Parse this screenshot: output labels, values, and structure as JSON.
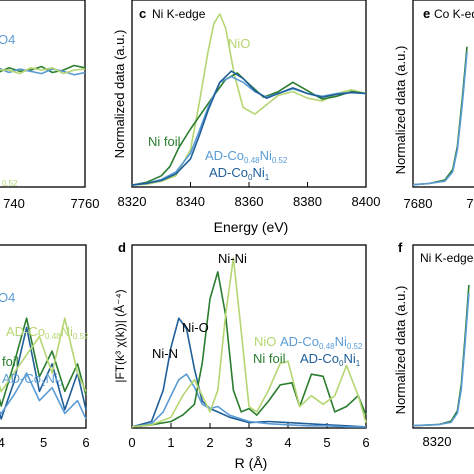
{
  "chart_data": [
    {
      "type": "line",
      "panel": "top-left (cropped)",
      "xlim": [
        7720,
        7760
      ],
      "ylim": [
        0,
        1.6
      ],
      "tick_labels_x": [
        "740",
        "7760"
      ],
      "text_fragments": [
        "O4",
        "0.52"
      ],
      "series": [
        {
          "name": "",
          "color": "#2a7d2e",
          "x": [
            7720,
            7725,
            7730,
            7735,
            7740,
            7745,
            7750,
            7755,
            7760
          ],
          "y": [
            0.98,
            1.02,
            0.99,
            1.0,
            1.03,
            0.98,
            1.0,
            1.04,
            1.02
          ]
        },
        {
          "name": "",
          "color": "#5b9bd5",
          "x": [
            7720,
            7725,
            7730,
            7735,
            7740,
            7745,
            7750,
            7755,
            7760
          ],
          "y": [
            1.02,
            0.98,
            1.01,
            0.99,
            0.97,
            1.01,
            0.99,
            0.96,
            0.98
          ]
        },
        {
          "name": "",
          "color": "#b5d672",
          "x": [
            7720,
            7725,
            7730,
            7735,
            7740,
            7745,
            7750,
            7755,
            7760
          ],
          "y": [
            1.0,
            1.0,
            0.97,
            1.02,
            1.0,
            1.02,
            0.97,
            1.0,
            1.01
          ]
        }
      ]
    },
    {
      "type": "line",
      "panel_label": "c",
      "title": "Ni K-edge",
      "xlabel": "Energy (eV)",
      "ylabel": "Normalized data (a.u.)",
      "xlim": [
        8320,
        8400
      ],
      "ylim": [
        0,
        2.0
      ],
      "x_ticks": [
        8320,
        8340,
        8360,
        8380,
        8400
      ],
      "tick_labels_x": [
        "8320",
        "8340",
        "8360",
        "8380",
        "8400"
      ],
      "annotations": [
        {
          "text": "NiO",
          "color": "#b5d672"
        },
        {
          "text": "Ni foil",
          "color": "#2a7d2e"
        }
      ],
      "legend_lines": [
        {
          "base": "AD-Co",
          "sub1": "0.48",
          "mid": "Ni",
          "sub2": "0.52",
          "color": "#5b9bd5"
        },
        {
          "base": "AD-Co",
          "sub1": "0",
          "mid": "Ni",
          "sub2": "1",
          "color": "#1f5f99"
        }
      ],
      "series": [
        {
          "name": "NiO",
          "color": "#b5d672",
          "x": [
            8320,
            8325,
            8330,
            8335,
            8340,
            8343,
            8346,
            8348,
            8350,
            8352,
            8355,
            8358,
            8362,
            8366,
            8370,
            8375,
            8380,
            8385,
            8390,
            8395,
            8400
          ],
          "y": [
            0.02,
            0.03,
            0.06,
            0.12,
            0.4,
            0.9,
            1.45,
            1.75,
            1.85,
            1.7,
            1.2,
            0.85,
            0.78,
            0.88,
            0.98,
            1.02,
            0.95,
            0.92,
            1.0,
            1.04,
            1.0
          ]
        },
        {
          "name": "Ni foil",
          "color": "#2a7d2e",
          "x": [
            8320,
            8325,
            8330,
            8333,
            8336,
            8340,
            8344,
            8348,
            8352,
            8356,
            8360,
            8365,
            8370,
            8375,
            8380,
            8385,
            8390,
            8395,
            8400
          ],
          "y": [
            0.02,
            0.05,
            0.12,
            0.22,
            0.42,
            0.62,
            0.8,
            0.98,
            1.15,
            1.22,
            1.1,
            0.96,
            1.02,
            1.12,
            1.03,
            0.94,
            0.97,
            1.02,
            1.0
          ]
        },
        {
          "name": "AD-Co0.48Ni0.52",
          "color": "#5b9bd5",
          "x": [
            8320,
            8325,
            8330,
            8335,
            8340,
            8343,
            8346,
            8350,
            8354,
            8358,
            8362,
            8366,
            8370,
            8375,
            8380,
            8385,
            8390,
            8395,
            8400
          ],
          "y": [
            0.02,
            0.04,
            0.08,
            0.16,
            0.36,
            0.6,
            0.85,
            1.12,
            1.18,
            1.12,
            1.02,
            0.96,
            1.0,
            1.05,
            1.0,
            0.97,
            1.0,
            1.01,
            1.0
          ]
        },
        {
          "name": "AD-Co0Ni1",
          "color": "#1f5f99",
          "x": [
            8320,
            8325,
            8330,
            8335,
            8340,
            8343,
            8346,
            8350,
            8354,
            8358,
            8362,
            8366,
            8370,
            8375,
            8380,
            8385,
            8390,
            8395,
            8400
          ],
          "y": [
            0.02,
            0.04,
            0.07,
            0.14,
            0.3,
            0.55,
            0.82,
            1.12,
            1.24,
            1.16,
            1.03,
            0.95,
            1.0,
            1.06,
            1.0,
            0.96,
            0.99,
            1.01,
            1.0
          ]
        }
      ]
    },
    {
      "type": "line",
      "panel_label": "e",
      "title": "Co K-edge",
      "ylabel": "Normalized data (a.u.)",
      "xlim": [
        7680,
        7760
      ],
      "tick_labels_x": [
        "7680",
        "7"
      ],
      "series": [
        {
          "name": "",
          "color": "#2a7d2e",
          "x": [
            7680,
            7690,
            7700,
            7705,
            7708,
            7711,
            7714
          ],
          "y": [
            0.02,
            0.03,
            0.06,
            0.15,
            0.35,
            0.75,
            1.2
          ]
        },
        {
          "name": "",
          "color": "#5b9bd5",
          "x": [
            7680,
            7690,
            7700,
            7705,
            7708,
            7711,
            7714
          ],
          "y": [
            0.02,
            0.03,
            0.05,
            0.13,
            0.32,
            0.7,
            1.15
          ]
        }
      ]
    },
    {
      "type": "line",
      "panel": "bottom-left (cropped)",
      "xlim": [
        3.5,
        6
      ],
      "x_ticks": [
        4,
        5,
        6
      ],
      "tick_labels_x": [
        "4",
        "5",
        "6"
      ],
      "text_fragments": [
        "O4"
      ],
      "legend_lines": [
        {
          "base": "AD-Co",
          "sub1": "0.48",
          "mid": "Ni",
          "sub2": "0.52",
          "color": "#b5d672"
        },
        {
          "base": "foil",
          "color": "#2a7d2e"
        },
        {
          "base": "AD-Co",
          "sub1": "1",
          "mid": "Ni",
          "sub2": "0",
          "color": "#5b9bd5"
        }
      ],
      "series": [
        {
          "name": "",
          "color": "#1f5f99",
          "x": [
            3.5,
            3.8,
            4.0,
            4.3,
            4.6,
            4.9,
            5.2,
            5.5,
            5.8,
            6.0
          ],
          "y": [
            0.05,
            0.2,
            0.05,
            0.25,
            0.55,
            0.2,
            0.35,
            0.1,
            0.3,
            0.1
          ]
        },
        {
          "name": "",
          "color": "#2a7d2e",
          "x": [
            3.5,
            3.8,
            4.0,
            4.3,
            4.6,
            4.9,
            5.2,
            5.5,
            5.8,
            6.0
          ],
          "y": [
            0.12,
            0.3,
            0.12,
            0.35,
            0.6,
            0.28,
            0.42,
            0.2,
            0.35,
            0.18
          ]
        },
        {
          "name": "",
          "color": "#b5d672",
          "x": [
            3.5,
            3.8,
            4.0,
            4.3,
            4.6,
            4.9,
            5.2,
            5.5,
            5.8,
            6.0
          ],
          "y": [
            0.2,
            0.35,
            0.2,
            0.3,
            0.4,
            0.5,
            0.3,
            0.6,
            0.3,
            0.2
          ]
        },
        {
          "name": "",
          "color": "#5b9bd5",
          "x": [
            3.5,
            3.8,
            4.0,
            4.3,
            4.6,
            4.9,
            5.2,
            5.5,
            5.8,
            6.0
          ],
          "y": [
            0.05,
            0.12,
            0.08,
            0.18,
            0.3,
            0.15,
            0.22,
            0.08,
            0.15,
            0.05
          ]
        }
      ]
    },
    {
      "type": "line",
      "panel_label": "d",
      "xlabel": "R (Å)",
      "ylabel": "|FT(k³ χ(k))| (Å⁻⁴)",
      "xlim": [
        0,
        6
      ],
      "ylim": [
        0,
        1.7
      ],
      "x_ticks": [
        0,
        1,
        2,
        3,
        4,
        5,
        6
      ],
      "tick_labels_x": [
        "0",
        "1",
        "2",
        "3",
        "4",
        "5",
        "6"
      ],
      "annotations": [
        {
          "text": "Ni-Ni"
        },
        {
          "text": "Ni-O"
        },
        {
          "text": "Ni-N"
        },
        {
          "text": "NiO",
          "color": "#b5d672"
        },
        {
          "text": "Ni foil",
          "color": "#2a7d2e"
        }
      ],
      "legend_lines": [
        {
          "base": "AD-Co",
          "sub1": "0.48",
          "mid": "Ni",
          "sub2": "0.52",
          "color": "#5b9bd5"
        },
        {
          "base": "AD-Co",
          "sub1": "0",
          "mid": "Ni",
          "sub2": "1",
          "color": "#1f5f99"
        }
      ],
      "series": [
        {
          "name": "AD-Co0Ni1",
          "color": "#1f5f99",
          "x": [
            0,
            0.5,
            0.8,
            1.0,
            1.2,
            1.4,
            1.6,
            1.8,
            2.0,
            2.2,
            2.5,
            3.0,
            3.5,
            4.0,
            4.5,
            5.0,
            5.5,
            6.0
          ],
          "y": [
            0.01,
            0.06,
            0.35,
            0.75,
            1.02,
            0.92,
            0.55,
            0.25,
            0.18,
            0.15,
            0.1,
            0.05,
            0.06,
            0.05,
            0.04,
            0.03,
            0.02,
            0.01
          ]
        },
        {
          "name": "AD-Co0.48Ni0.52",
          "color": "#5b9bd5",
          "x": [
            0,
            0.5,
            0.8,
            1.0,
            1.2,
            1.4,
            1.6,
            1.8,
            2.0,
            2.2,
            2.5,
            3.0,
            3.5,
            4.0,
            4.5,
            5.0,
            5.5,
            6.0
          ],
          "y": [
            0.01,
            0.04,
            0.15,
            0.3,
            0.45,
            0.5,
            0.38,
            0.22,
            0.18,
            0.2,
            0.12,
            0.06,
            0.04,
            0.03,
            0.02,
            0.02,
            0.01,
            0.01
          ]
        },
        {
          "name": "Ni foil",
          "color": "#2a7d2e",
          "x": [
            0,
            0.5,
            1.0,
            1.3,
            1.6,
            1.8,
            2.0,
            2.2,
            2.4,
            2.6,
            2.8,
            3.0,
            3.2,
            3.5,
            3.8,
            4.1,
            4.3,
            4.6,
            4.9,
            5.2,
            5.5,
            5.8,
            6.0
          ],
          "y": [
            0.01,
            0.03,
            0.06,
            0.12,
            0.22,
            0.6,
            1.2,
            1.45,
            1.05,
            0.35,
            0.15,
            0.18,
            0.12,
            0.25,
            0.4,
            0.42,
            0.2,
            0.5,
            0.48,
            0.15,
            0.2,
            0.3,
            0.12
          ]
        },
        {
          "name": "NiO",
          "color": "#b5d672",
          "x": [
            0,
            0.5,
            1.0,
            1.3,
            1.6,
            1.8,
            2.0,
            2.2,
            2.4,
            2.6,
            2.8,
            3.0,
            3.2,
            3.5,
            3.8,
            4.0,
            4.3,
            4.6,
            4.9,
            5.2,
            5.5,
            5.8,
            6.0
          ],
          "y": [
            0.01,
            0.03,
            0.1,
            0.3,
            0.45,
            0.3,
            0.15,
            0.35,
            1.05,
            1.58,
            0.9,
            0.2,
            0.15,
            0.35,
            0.6,
            0.62,
            0.2,
            0.3,
            0.22,
            0.3,
            0.58,
            0.3,
            0.05
          ]
        }
      ]
    },
    {
      "type": "line",
      "panel_label": "f",
      "title": "Ni K-edge",
      "ylabel": "Normalized data (a.u.)",
      "xlim": [
        8300,
        8400
      ],
      "tick_labels_x": [
        "8320"
      ],
      "series": [
        {
          "name": "",
          "color": "#2a7d2e",
          "x": [
            8300,
            8320,
            8330,
            8335,
            8338,
            8341,
            8344
          ],
          "y": [
            0.02,
            0.03,
            0.06,
            0.15,
            0.38,
            0.8,
            1.25
          ]
        },
        {
          "name": "",
          "color": "#5b9bd5",
          "x": [
            8300,
            8320,
            8330,
            8335,
            8338,
            8341,
            8344
          ],
          "y": [
            0.02,
            0.03,
            0.05,
            0.13,
            0.34,
            0.74,
            1.18
          ]
        }
      ]
    }
  ]
}
